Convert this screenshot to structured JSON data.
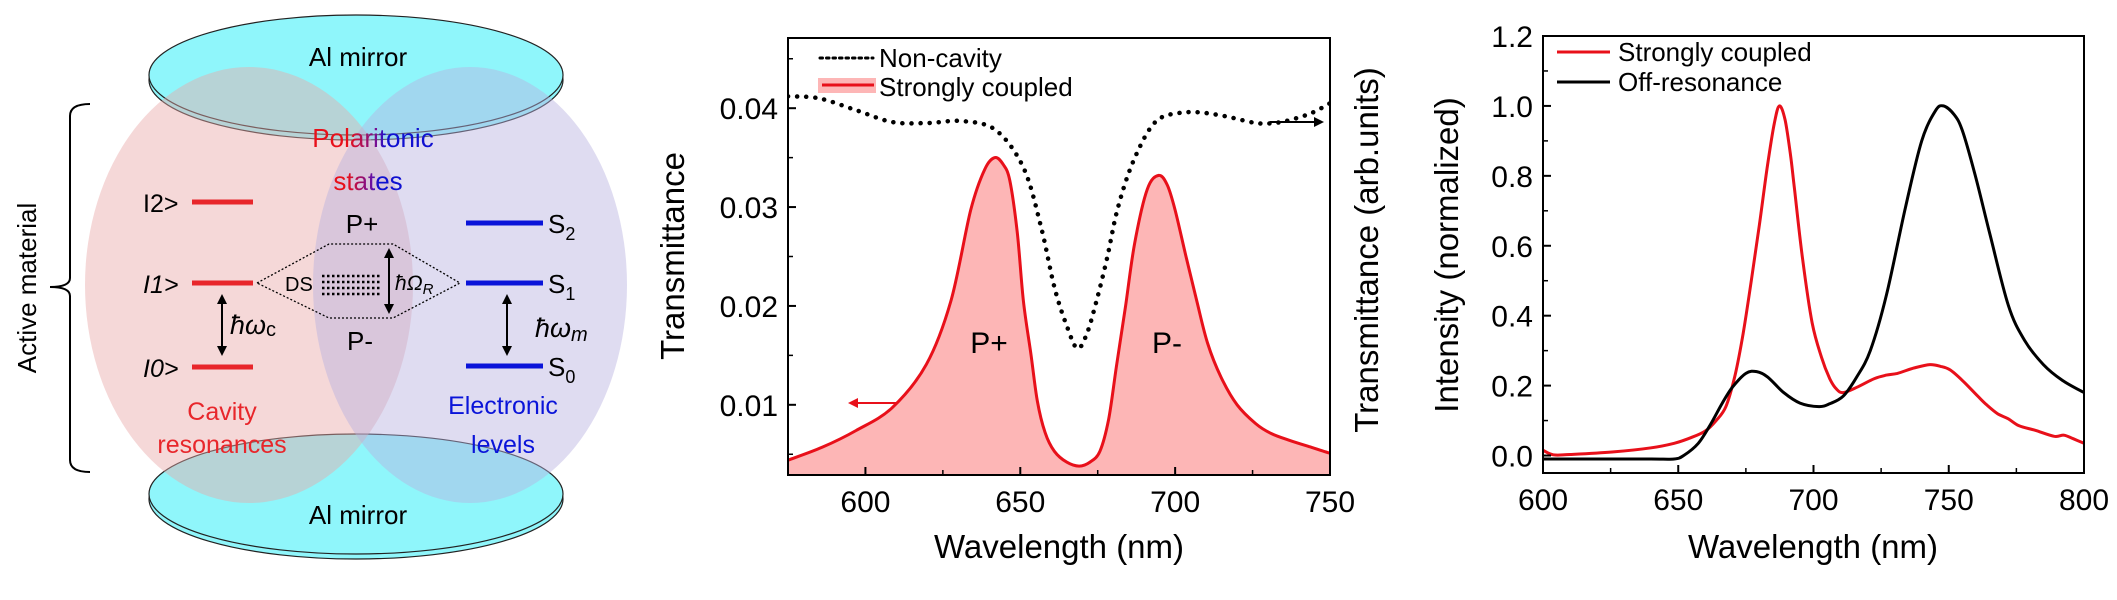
{
  "diagram": {
    "mirror_label": "Al mirror",
    "active_material_label": "Active material",
    "polaritonic_label_line1": "Polaritonic",
    "polaritonic_label_line2": "states",
    "cavity_label_line1": "Cavity",
    "cavity_label_line2": "resonances",
    "electronic_label_line1": "Electronic",
    "electronic_label_line2": "levels",
    "cavity_levels": [
      "I2>",
      "I1>",
      "I0>"
    ],
    "polariton_levels": [
      "P+",
      "P-"
    ],
    "electronic_levels": [
      {
        "base": "S",
        "sub": "2"
      },
      {
        "base": "S",
        "sub": "1"
      },
      {
        "base": "S",
        "sub": "0"
      }
    ],
    "dark_states_label": "DS",
    "rabi_label": {
      "base": "ħΩ",
      "sub": "R"
    },
    "cavity_energy_label": {
      "base": "ħω",
      "sub": "c"
    },
    "molecular_energy_label": {
      "base": "ħω",
      "sub": "m"
    },
    "colors": {
      "cavity": "#e8262b",
      "electronic": "#0a14d9",
      "mirror": "#8ff6fb",
      "cavity_region": "#f3d3d3",
      "electronic_region": "#d8d6ef"
    }
  },
  "chart_data": [
    {
      "type": "line",
      "title": "",
      "xlabel": "Wavelength (nm)",
      "ylabel": "Transmittance",
      "ylabel_right": "Transmittance (arb.units)",
      "xlim": [
        575,
        750
      ],
      "ylim": [
        0.0029,
        0.0471
      ],
      "xticks": [
        600,
        650,
        700,
        750
      ],
      "xminor": [
        625,
        675,
        725
      ],
      "yticks": [
        0.01,
        0.02,
        0.03,
        0.04
      ],
      "yticklabels": [
        "0.01",
        "0.02",
        "0.03",
        "0.04"
      ],
      "yminor": [
        0.005,
        0.015,
        0.025,
        0.035,
        0.045
      ],
      "grid": false,
      "legend": "top-left",
      "annotations": [
        "P+",
        "P-"
      ],
      "series": [
        {
          "name": "Non-cavity",
          "style": "dotted",
          "color": "#000000",
          "axis": "right",
          "x": [
            575,
            585,
            597,
            608.6,
            620,
            631,
            642,
            651,
            656.7,
            661,
            665,
            668.4,
            671.5,
            674.6,
            678,
            681,
            684.5,
            688,
            692,
            695.8,
            701,
            707,
            716,
            726,
            732,
            737,
            744,
            750
          ],
          "y": [
            0.0412,
            0.041,
            0.0398,
            0.0386,
            0.0385,
            0.0387,
            0.0378,
            0.034,
            0.028,
            0.0219,
            0.018,
            0.0157,
            0.0172,
            0.0205,
            0.0248,
            0.0293,
            0.033,
            0.0357,
            0.038,
            0.0391,
            0.0395,
            0.0396,
            0.0392,
            0.0385,
            0.0385,
            0.0388,
            0.0395,
            0.0405
          ]
        },
        {
          "name": "Strongly coupled",
          "style": "solid-filled",
          "color": "#e8101a",
          "fill": "#fdb6b6",
          "axis": "left",
          "x": [
            575,
            586,
            597,
            608.6,
            619.7,
            627.6,
            634,
            638.5,
            641.8,
            644.5,
            646.6,
            649,
            651,
            653.5,
            655.5,
            658,
            661,
            665,
            669,
            672.5,
            675.7,
            678.5,
            681,
            684,
            686.9,
            691,
            694.7,
            697.5,
            700,
            703.5,
            707,
            710.5,
            714.8,
            720,
            726,
            731,
            737,
            744,
            750
          ],
          "y": [
            0.0044,
            0.0057,
            0.0074,
            0.0097,
            0.0141,
            0.0205,
            0.0297,
            0.0338,
            0.035,
            0.0343,
            0.0327,
            0.0275,
            0.0205,
            0.015,
            0.0104,
            0.0072,
            0.0053,
            0.0042,
            0.0038,
            0.0042,
            0.0053,
            0.0085,
            0.0138,
            0.02,
            0.0263,
            0.0318,
            0.0332,
            0.0322,
            0.0297,
            0.025,
            0.0205,
            0.0162,
            0.0128,
            0.01,
            0.0081,
            0.0071,
            0.0064,
            0.0057,
            0.0051
          ]
        }
      ]
    },
    {
      "type": "line",
      "title": "",
      "xlabel": "Wavelength (nm)",
      "ylabel": "Intensity (normalized)",
      "xlim": [
        600,
        800
      ],
      "ylim": [
        -0.05,
        1.2
      ],
      "xticks": [
        600,
        650,
        700,
        750,
        800
      ],
      "xminor": [
        625,
        675,
        725,
        775
      ],
      "yticks": [
        0.0,
        0.2,
        0.4,
        0.6,
        0.8,
        1.0,
        1.2
      ],
      "yticklabels": [
        "0.0",
        "0.2",
        "0.4",
        "0.6",
        "0.8",
        "1.0",
        "1.2"
      ],
      "yminor": [
        0.1,
        0.3,
        0.5,
        0.7,
        0.9,
        1.1
      ],
      "grid": false,
      "legend": "top-left",
      "series": [
        {
          "name": "Strongly coupled",
          "color": "#e8101a",
          "x": [
            600,
            603.8,
            610,
            625.5,
            640,
            648.5,
            655,
            660,
            664,
            667.6,
            671,
            674,
            677,
            680,
            683,
            685.5,
            687.4,
            689.5,
            691.5,
            693,
            696,
            699.5,
            703,
            706,
            708.5,
            711,
            716,
            722.5,
            727,
            731,
            737,
            743,
            747,
            750.5,
            755,
            760.7,
            764,
            768,
            772,
            776,
            782,
            789,
            792.6,
            796,
            800
          ],
          "y": [
            0.015,
            0.002,
            0.003,
            0.01,
            0.022,
            0.035,
            0.052,
            0.07,
            0.1,
            0.14,
            0.23,
            0.35,
            0.5,
            0.66,
            0.83,
            0.95,
            1.0,
            0.96,
            0.86,
            0.76,
            0.56,
            0.38,
            0.28,
            0.22,
            0.19,
            0.18,
            0.195,
            0.22,
            0.23,
            0.235,
            0.25,
            0.26,
            0.255,
            0.245,
            0.215,
            0.17,
            0.145,
            0.12,
            0.105,
            0.085,
            0.072,
            0.055,
            0.058,
            0.048,
            0.035
          ]
        },
        {
          "name": "Off-resonance",
          "color": "#000000",
          "x": [
            600,
            620,
            640,
            648.5,
            652,
            657.4,
            662,
            666.3,
            670,
            675,
            679,
            683,
            689,
            695,
            702,
            706,
            711,
            716,
            721,
            727,
            734,
            740,
            745,
            748,
            752,
            755,
            759.5,
            765,
            772,
            778,
            785,
            792,
            800
          ],
          "y": [
            -0.01,
            -0.01,
            -0.01,
            -0.01,
            0.0,
            0.035,
            0.09,
            0.15,
            0.195,
            0.235,
            0.24,
            0.225,
            0.18,
            0.15,
            0.14,
            0.148,
            0.17,
            0.225,
            0.3,
            0.46,
            0.71,
            0.9,
            0.985,
            1.0,
            0.975,
            0.93,
            0.81,
            0.64,
            0.43,
            0.33,
            0.26,
            0.215,
            0.18
          ]
        }
      ]
    }
  ]
}
